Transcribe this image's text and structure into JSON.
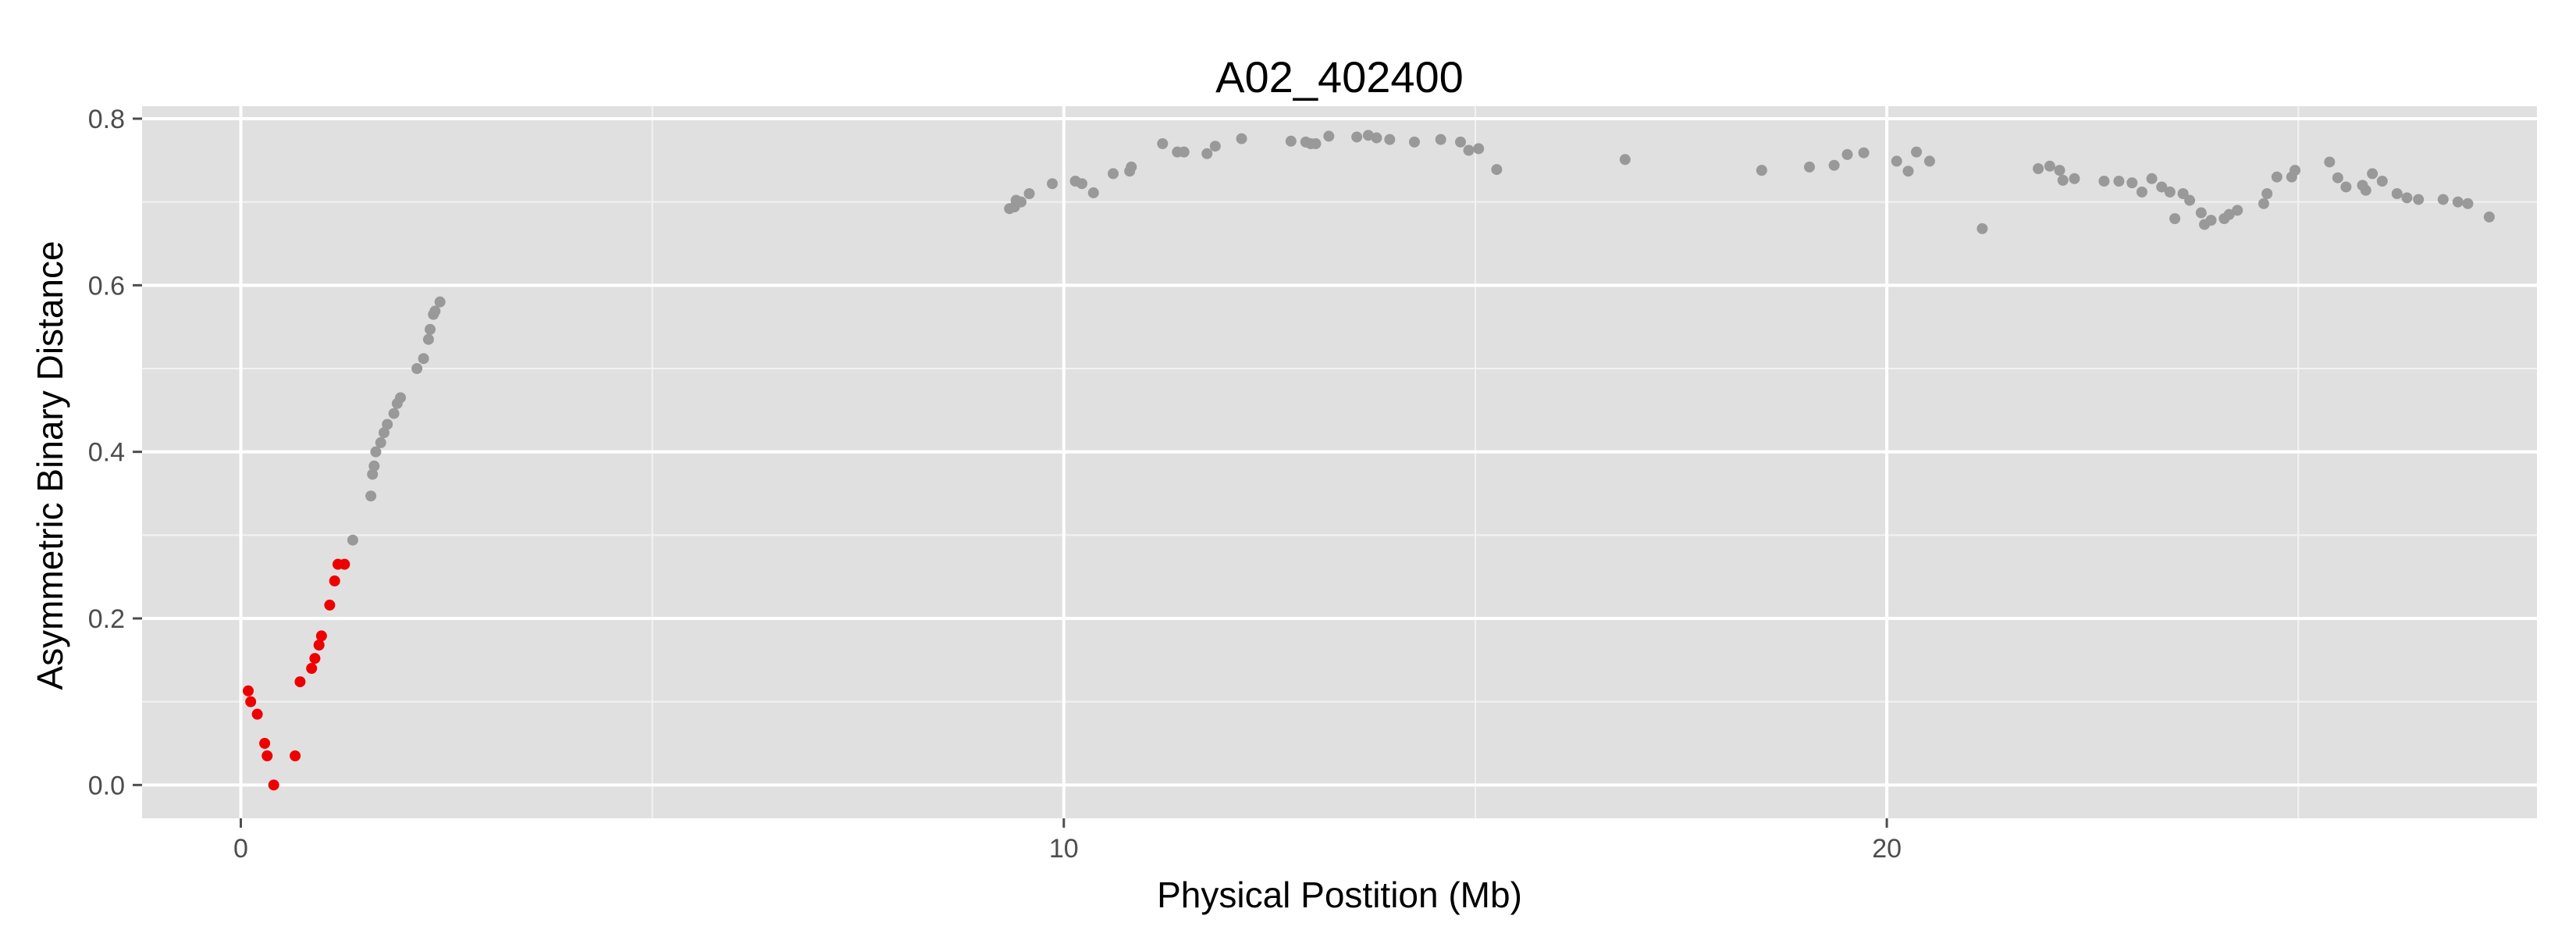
{
  "chart_data": {
    "type": "scatter",
    "title": "A02_402400",
    "xlabel": "Physical Postition (Mb)",
    "ylabel": "Asymmetric Binary Distance",
    "xlim": [
      -1.2,
      27.9
    ],
    "ylim": [
      -0.04,
      0.815
    ],
    "x_ticks": [
      0,
      10,
      20
    ],
    "x_tick_labels": [
      "0",
      "10",
      "20"
    ],
    "y_ticks": [
      0.0,
      0.2,
      0.4,
      0.6,
      0.8
    ],
    "y_tick_labels": [
      "0.0",
      "0.2",
      "0.4",
      "0.6",
      "0.8"
    ],
    "grid": true,
    "panel_color": "#e0e0e0",
    "series": [
      {
        "color": "#ee0000",
        "points": [
          [
            0.09,
            0.113
          ],
          [
            0.12,
            0.1
          ],
          [
            0.2,
            0.085
          ],
          [
            0.29,
            0.05
          ],
          [
            0.32,
            0.035
          ],
          [
            0.4,
            0.0
          ],
          [
            0.66,
            0.035
          ],
          [
            0.72,
            0.124
          ],
          [
            0.86,
            0.14
          ],
          [
            0.9,
            0.152
          ],
          [
            0.95,
            0.168
          ],
          [
            0.98,
            0.179
          ],
          [
            1.08,
            0.216
          ],
          [
            1.14,
            0.245
          ],
          [
            1.18,
            0.265
          ],
          [
            1.26,
            0.265
          ]
        ]
      },
      {
        "color": "#999999",
        "points": [
          [
            1.36,
            0.294
          ],
          [
            1.58,
            0.347
          ],
          [
            1.6,
            0.373
          ],
          [
            1.62,
            0.383
          ],
          [
            1.64,
            0.4
          ],
          [
            1.7,
            0.411
          ],
          [
            1.74,
            0.423
          ],
          [
            1.78,
            0.433
          ],
          [
            1.86,
            0.446
          ],
          [
            1.9,
            0.458
          ],
          [
            1.94,
            0.465
          ],
          [
            2.14,
            0.5
          ],
          [
            2.22,
            0.512
          ],
          [
            2.28,
            0.535
          ],
          [
            2.3,
            0.547
          ],
          [
            2.34,
            0.565
          ],
          [
            2.36,
            0.569
          ],
          [
            2.42,
            0.58
          ],
          [
            9.34,
            0.692
          ],
          [
            9.4,
            0.694
          ],
          [
            9.42,
            0.702
          ],
          [
            9.48,
            0.7
          ],
          [
            9.58,
            0.71
          ],
          [
            9.86,
            0.722
          ],
          [
            10.14,
            0.725
          ],
          [
            10.22,
            0.722
          ],
          [
            10.36,
            0.711
          ],
          [
            10.6,
            0.734
          ],
          [
            10.8,
            0.737
          ],
          [
            10.82,
            0.742
          ],
          [
            11.2,
            0.77
          ],
          [
            11.38,
            0.76
          ],
          [
            11.46,
            0.76
          ],
          [
            11.74,
            0.758
          ],
          [
            11.84,
            0.767
          ],
          [
            12.16,
            0.776
          ],
          [
            12.76,
            0.773
          ],
          [
            12.94,
            0.772
          ],
          [
            13.0,
            0.77
          ],
          [
            13.06,
            0.77
          ],
          [
            13.22,
            0.779
          ],
          [
            13.56,
            0.778
          ],
          [
            13.7,
            0.78
          ],
          [
            13.8,
            0.777
          ],
          [
            13.96,
            0.775
          ],
          [
            14.26,
            0.772
          ],
          [
            14.58,
            0.775
          ],
          [
            14.82,
            0.772
          ],
          [
            14.92,
            0.762
          ],
          [
            15.04,
            0.764
          ],
          [
            15.26,
            0.739
          ],
          [
            16.82,
            0.751
          ],
          [
            18.48,
            0.738
          ],
          [
            19.06,
            0.742
          ],
          [
            19.36,
            0.744
          ],
          [
            19.52,
            0.757
          ],
          [
            19.72,
            0.759
          ],
          [
            20.12,
            0.749
          ],
          [
            20.26,
            0.737
          ],
          [
            20.36,
            0.76
          ],
          [
            20.52,
            0.749
          ],
          [
            21.16,
            0.668
          ],
          [
            21.84,
            0.74
          ],
          [
            21.98,
            0.743
          ],
          [
            22.1,
            0.738
          ],
          [
            22.14,
            0.726
          ],
          [
            22.28,
            0.728
          ],
          [
            22.64,
            0.725
          ],
          [
            22.82,
            0.725
          ],
          [
            22.98,
            0.723
          ],
          [
            23.1,
            0.712
          ],
          [
            23.22,
            0.728
          ],
          [
            23.34,
            0.718
          ],
          [
            23.44,
            0.712
          ],
          [
            23.5,
            0.68
          ],
          [
            23.6,
            0.71
          ],
          [
            23.68,
            0.702
          ],
          [
            23.82,
            0.687
          ],
          [
            23.86,
            0.673
          ],
          [
            23.94,
            0.678
          ],
          [
            24.1,
            0.68
          ],
          [
            24.16,
            0.685
          ],
          [
            24.26,
            0.69
          ],
          [
            24.58,
            0.698
          ],
          [
            24.62,
            0.71
          ],
          [
            24.74,
            0.73
          ],
          [
            24.92,
            0.73
          ],
          [
            24.96,
            0.738
          ],
          [
            25.38,
            0.748
          ],
          [
            25.48,
            0.729
          ],
          [
            25.58,
            0.718
          ],
          [
            25.78,
            0.72
          ],
          [
            25.82,
            0.714
          ],
          [
            25.9,
            0.734
          ],
          [
            26.02,
            0.725
          ],
          [
            26.2,
            0.71
          ],
          [
            26.32,
            0.705
          ],
          [
            26.46,
            0.703
          ],
          [
            26.76,
            0.703
          ],
          [
            26.94,
            0.7
          ],
          [
            27.06,
            0.698
          ],
          [
            27.32,
            0.682
          ]
        ]
      }
    ]
  }
}
